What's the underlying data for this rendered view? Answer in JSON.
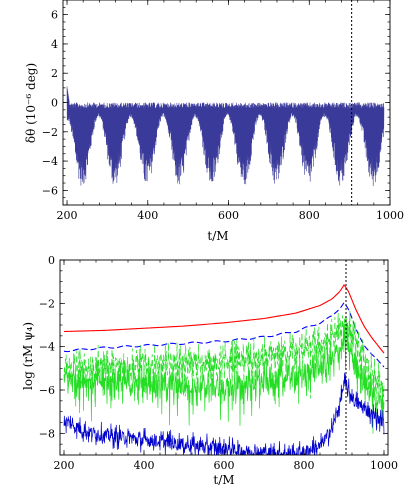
{
  "chart_data": [
    {
      "type": "line",
      "title": "",
      "xlabel": "t/M",
      "ylabel": "δθ (10⁻⁶ deg)",
      "xlim": [
        190,
        1000
      ],
      "ylim": [
        -7,
        7
      ],
      "xticks": [
        200,
        400,
        600,
        800,
        1000
      ],
      "yticks": [
        -6,
        -4,
        -2,
        0,
        2,
        4,
        6
      ],
      "grid": false,
      "legend": "none",
      "series": [
        {
          "color": "#3a3a9a",
          "style": "dense-oscillation",
          "x_range": [
            200,
            985
          ],
          "upper_envelope": 0,
          "lower_envelope_min": -5.8,
          "lower_envelope_max": -1.0,
          "modulation_period": 80,
          "first_minimum_t": 238,
          "initial_spike": 1.1
        }
      ],
      "annotations": [
        {
          "type": "vertical-dotted-line",
          "x": 905
        }
      ]
    },
    {
      "type": "line",
      "title": "",
      "xlabel": "t/M",
      "ylabel": "log (rM ψ₄)",
      "xlim": [
        190,
        1010
      ],
      "ylim": [
        -9,
        0
      ],
      "xticks": [
        200,
        400,
        600,
        800,
        1000
      ],
      "yticks": [
        -8,
        -6,
        -4,
        -2,
        0
      ],
      "grid": false,
      "legend": "none",
      "series": [
        {
          "color": "#ff0000",
          "style": "solid",
          "x": [
            200,
            300,
            400,
            500,
            600,
            700,
            780,
            840,
            870,
            890,
            900,
            910,
            930,
            950,
            970,
            1000
          ],
          "y": [
            -3.3,
            -3.25,
            -3.15,
            -3.05,
            -2.9,
            -2.7,
            -2.45,
            -2.1,
            -1.8,
            -1.45,
            -1.15,
            -1.4,
            -2.3,
            -3.05,
            -3.6,
            -4.3
          ]
        },
        {
          "color": "#0000ff",
          "style": "dashed",
          "x": [
            200,
            300,
            400,
            500,
            600,
            700,
            780,
            840,
            870,
            890,
            900,
            910,
            930,
            950,
            970,
            1000
          ],
          "y": [
            -4.2,
            -4.05,
            -3.95,
            -3.85,
            -3.75,
            -3.55,
            -3.3,
            -2.9,
            -2.6,
            -2.2,
            -1.95,
            -2.25,
            -3.2,
            -3.9,
            -4.4,
            -4.9
          ]
        },
        {
          "color": "#22dd22",
          "style": "dashed-noisy",
          "x": [
            200,
            300,
            400,
            500,
            600,
            700,
            780,
            840,
            870,
            890,
            905,
            920,
            940,
            960,
            980,
            1000
          ],
          "y": [
            -5.0,
            -4.9,
            -4.8,
            -4.75,
            -4.7,
            -4.5,
            -4.2,
            -3.9,
            -3.6,
            -3.2,
            -2.8,
            -3.5,
            -4.3,
            -5.0,
            -5.6,
            -6.0
          ]
        },
        {
          "color": "#22dd22",
          "style": "solid-noisy",
          "x": [
            200,
            300,
            400,
            500,
            600,
            700,
            780,
            840,
            870,
            890,
            905,
            920,
            940,
            960,
            980,
            1000
          ],
          "y": [
            -5.4,
            -5.6,
            -5.7,
            -5.8,
            -5.9,
            -5.6,
            -5.3,
            -5.0,
            -4.6,
            -4.1,
            -3.7,
            -4.3,
            -5.2,
            -5.9,
            -6.3,
            -6.6
          ]
        },
        {
          "color": "#0000cc",
          "style": "solid-noisy",
          "x": [
            200,
            250,
            300,
            400,
            500,
            600,
            700,
            780,
            840,
            870,
            890,
            900,
            910,
            930,
            960,
            1000
          ],
          "y": [
            -7.4,
            -7.9,
            -8.1,
            -8.3,
            -8.5,
            -8.7,
            -8.9,
            -8.95,
            -8.6,
            -7.8,
            -6.6,
            -5.7,
            -6.0,
            -6.6,
            -7.0,
            -7.5
          ]
        }
      ],
      "annotations": [
        {
          "type": "vertical-dotted-line",
          "x": 905
        }
      ]
    }
  ]
}
